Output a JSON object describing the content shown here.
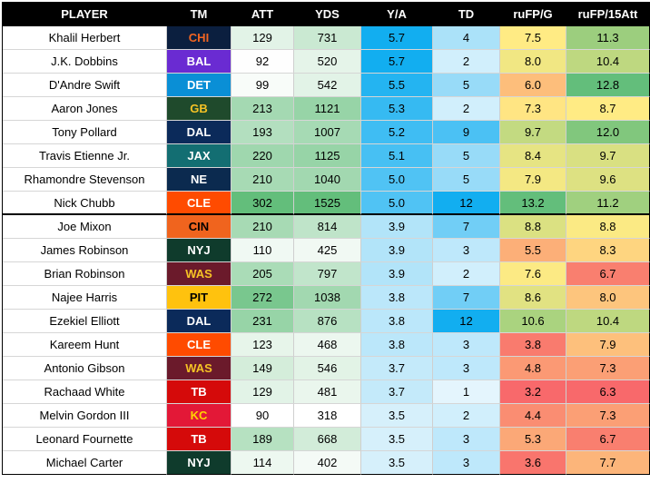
{
  "headers": [
    "PLAYER",
    "TM",
    "ATT",
    "YDS",
    "Y/A",
    "TD",
    "ruFP/G",
    "ruFP/15Att"
  ],
  "teams": {
    "CHI": {
      "bg": "#0b1f3f",
      "fg": "#f26522"
    },
    "BAL": {
      "bg": "#6a2bd2",
      "fg": "#ffffff"
    },
    "DET": {
      "bg": "#0a8fd6",
      "fg": "#ffffff"
    },
    "GB": {
      "bg": "#1f4a2c",
      "fg": "#f6c325"
    },
    "DAL": {
      "bg": "#0b2a5a",
      "fg": "#ffffff"
    },
    "JAX": {
      "bg": "#136e72",
      "fg": "#ffffff"
    },
    "NE": {
      "bg": "#0b2a4f",
      "fg": "#ffffff"
    },
    "CLE": {
      "bg": "#ff4b00",
      "fg": "#ffffff"
    },
    "CIN": {
      "bg": "#f0641e",
      "fg": "#000000"
    },
    "NYJ": {
      "bg": "#0f3b2c",
      "fg": "#ffffff"
    },
    "WAS": {
      "bg": "#6b1a2b",
      "fg": "#f6c325"
    },
    "PIT": {
      "bg": "#ffc20e",
      "fg": "#000000"
    },
    "TB": {
      "bg": "#d50a0a",
      "fg": "#ffffff"
    },
    "KC": {
      "bg": "#e31837",
      "fg": "#ffd400"
    }
  },
  "rows": [
    {
      "player": "Khalil Herbert",
      "tm": "CHI",
      "att": "129",
      "yds": "731",
      "ya": "5.7",
      "td": "4",
      "fpg": "7.5",
      "fp15": "11.3"
    },
    {
      "player": "J.K. Dobbins",
      "tm": "BAL",
      "att": "92",
      "yds": "520",
      "ya": "5.7",
      "td": "2",
      "fpg": "8.0",
      "fp15": "10.4"
    },
    {
      "player": "D'Andre Swift",
      "tm": "DET",
      "att": "99",
      "yds": "542",
      "ya": "5.5",
      "td": "5",
      "fpg": "6.0",
      "fp15": "12.8"
    },
    {
      "player": "Aaron Jones",
      "tm": "GB",
      "att": "213",
      "yds": "1121",
      "ya": "5.3",
      "td": "2",
      "fpg": "7.3",
      "fp15": "8.7"
    },
    {
      "player": "Tony Pollard",
      "tm": "DAL",
      "att": "193",
      "yds": "1007",
      "ya": "5.2",
      "td": "9",
      "fpg": "9.7",
      "fp15": "12.0"
    },
    {
      "player": "Travis Etienne Jr.",
      "tm": "JAX",
      "att": "220",
      "yds": "1125",
      "ya": "5.1",
      "td": "5",
      "fpg": "8.4",
      "fp15": "9.7"
    },
    {
      "player": "Rhamondre Stevenson",
      "tm": "NE",
      "att": "210",
      "yds": "1040",
      "ya": "5.0",
      "td": "5",
      "fpg": "7.9",
      "fp15": "9.6"
    },
    {
      "player": "Nick Chubb",
      "tm": "CLE",
      "att": "302",
      "yds": "1525",
      "ya": "5.0",
      "td": "12",
      "fpg": "13.2",
      "fp15": "11.2"
    },
    {
      "player": "Joe Mixon",
      "tm": "CIN",
      "att": "210",
      "yds": "814",
      "ya": "3.9",
      "td": "7",
      "fpg": "8.8",
      "fp15": "8.8"
    },
    {
      "player": "James Robinson",
      "tm": "NYJ",
      "att": "110",
      "yds": "425",
      "ya": "3.9",
      "td": "3",
      "fpg": "5.5",
      "fp15": "8.3"
    },
    {
      "player": "Brian Robinson",
      "tm": "WAS",
      "att": "205",
      "yds": "797",
      "ya": "3.9",
      "td": "2",
      "fpg": "7.6",
      "fp15": "6.7"
    },
    {
      "player": "Najee Harris",
      "tm": "PIT",
      "att": "272",
      "yds": "1038",
      "ya": "3.8",
      "td": "7",
      "fpg": "8.6",
      "fp15": "8.0"
    },
    {
      "player": "Ezekiel Elliott",
      "tm": "DAL",
      "att": "231",
      "yds": "876",
      "ya": "3.8",
      "td": "12",
      "fpg": "10.6",
      "fp15": "10.4"
    },
    {
      "player": "Kareem Hunt",
      "tm": "CLE",
      "att": "123",
      "yds": "468",
      "ya": "3.8",
      "td": "3",
      "fpg": "3.8",
      "fp15": "7.9"
    },
    {
      "player": "Antonio Gibson",
      "tm": "WAS",
      "att": "149",
      "yds": "546",
      "ya": "3.7",
      "td": "3",
      "fpg": "4.8",
      "fp15": "7.3"
    },
    {
      "player": "Rachaad White",
      "tm": "TB",
      "att": "129",
      "yds": "481",
      "ya": "3.7",
      "td": "1",
      "fpg": "3.2",
      "fp15": "6.3"
    },
    {
      "player": "Melvin Gordon III",
      "tm": "KC",
      "att": "90",
      "yds": "318",
      "ya": "3.5",
      "td": "2",
      "fpg": "4.4",
      "fp15": "7.3"
    },
    {
      "player": "Leonard Fournette",
      "tm": "TB",
      "att": "189",
      "yds": "668",
      "ya": "3.5",
      "td": "3",
      "fpg": "5.3",
      "fp15": "6.7"
    },
    {
      "player": "Michael Carter",
      "tm": "NYJ",
      "att": "114",
      "yds": "402",
      "ya": "3.5",
      "td": "3",
      "fpg": "3.6",
      "fp15": "7.7"
    }
  ],
  "divider_after_row": 8
}
